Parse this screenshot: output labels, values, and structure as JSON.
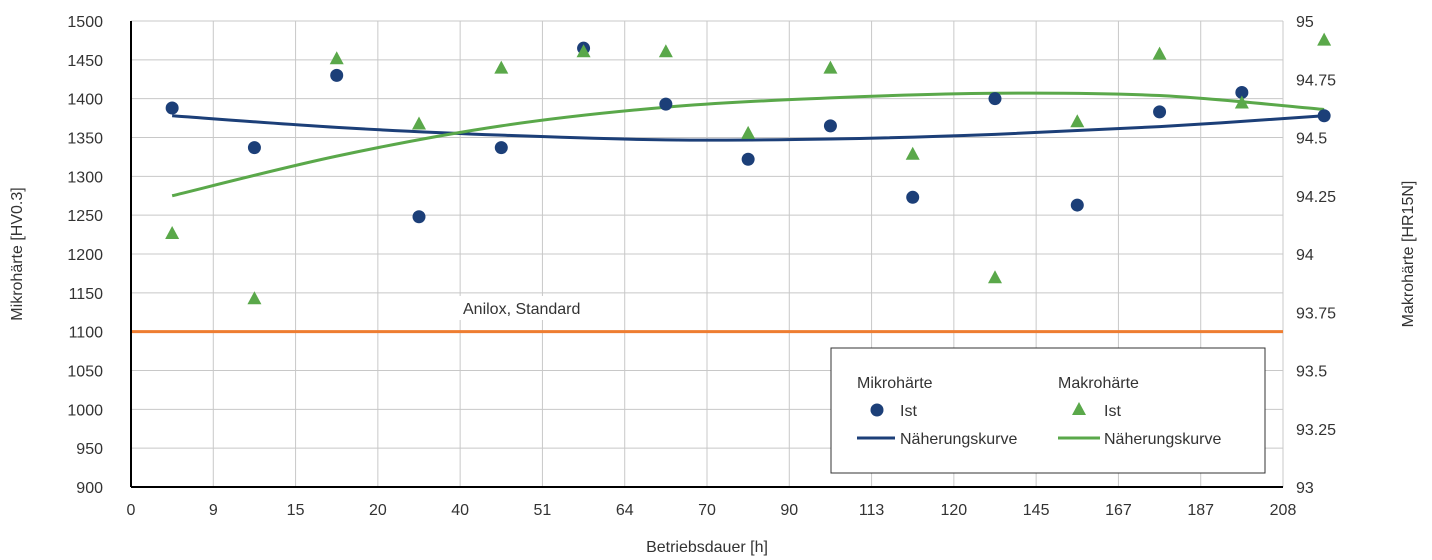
{
  "chart_data": {
    "type": "scatter",
    "x_axis": {
      "label": "Betriebsdauer [h]",
      "tick_labels": [
        "0",
        "9",
        "15",
        "20",
        "40",
        "51",
        "64",
        "70",
        "90",
        "113",
        "120",
        "145",
        "167",
        "187",
        "208"
      ]
    },
    "y_left": {
      "label": "Mikrohärte [HV0.3]",
      "min": 900,
      "max": 1500,
      "step": 50
    },
    "y_right": {
      "label": "Makrohärte [HR15N]",
      "min": 93,
      "max": 95,
      "step": 0.25,
      "tick_labels": [
        "93",
        "93.25",
        "93.5",
        "93.75",
        "94",
        "94.25",
        "94.5",
        "94.75",
        "95"
      ]
    },
    "grid": true,
    "reference_line": {
      "label": "Anilox, Standard",
      "axis": "left",
      "value": 1100,
      "color": "#ee7d31"
    },
    "series": [
      {
        "group": "Mikrohärte",
        "name": "Ist",
        "axis": "left",
        "kind": "points",
        "marker": "circle",
        "color": "#1c3f78",
        "x": [
          0.5,
          1.5,
          2.5,
          3.5,
          4.5,
          5.5,
          6.5,
          7.5,
          8.5,
          9.5,
          10.5,
          11.5,
          12.5,
          13.5,
          14.5
        ],
        "values": [
          1388,
          1337,
          1430,
          1248,
          1337,
          1465,
          1393,
          1322,
          1365,
          1273,
          1400,
          1263,
          1383,
          1408,
          1378
        ]
      },
      {
        "group": "Makrohärte",
        "name": "Ist",
        "axis": "right",
        "kind": "points",
        "marker": "triangle",
        "color": "#5aa84a",
        "x": [
          0.5,
          1.5,
          2.5,
          3.5,
          4.5,
          5.5,
          6.5,
          7.5,
          8.5,
          9.5,
          10.5,
          11.5,
          12.5,
          13.5,
          14.5
        ],
        "values": [
          94.09,
          93.81,
          94.84,
          94.56,
          94.8,
          94.87,
          94.87,
          94.52,
          94.8,
          94.43,
          93.9,
          94.57,
          94.86,
          94.65,
          94.92
        ]
      },
      {
        "group": "Mikrohärte",
        "name": "Näherungskurve",
        "axis": "left",
        "kind": "line",
        "color": "#1c3f78",
        "x": [
          0.5,
          2.5,
          4.5,
          6.5,
          8.5,
          10.5,
          12.5,
          14.5
        ],
        "values": [
          1378,
          1363,
          1353,
          1347,
          1348,
          1354,
          1364,
          1378
        ]
      },
      {
        "group": "Makrohärte",
        "name": "Näherungskurve",
        "axis": "right",
        "kind": "line",
        "color": "#5aa84a",
        "x": [
          0.5,
          2.5,
          4.5,
          6.5,
          8.5,
          10.5,
          12.5,
          14.5
        ],
        "values": [
          94.25,
          94.42,
          94.55,
          94.63,
          94.67,
          94.69,
          94.68,
          94.62
        ]
      }
    ],
    "legend": {
      "position": "bottom-right",
      "groups": [
        "Mikrohärte",
        "Makrohärte"
      ],
      "point_label": "Ist",
      "line_label": "Näherungskurve"
    }
  }
}
